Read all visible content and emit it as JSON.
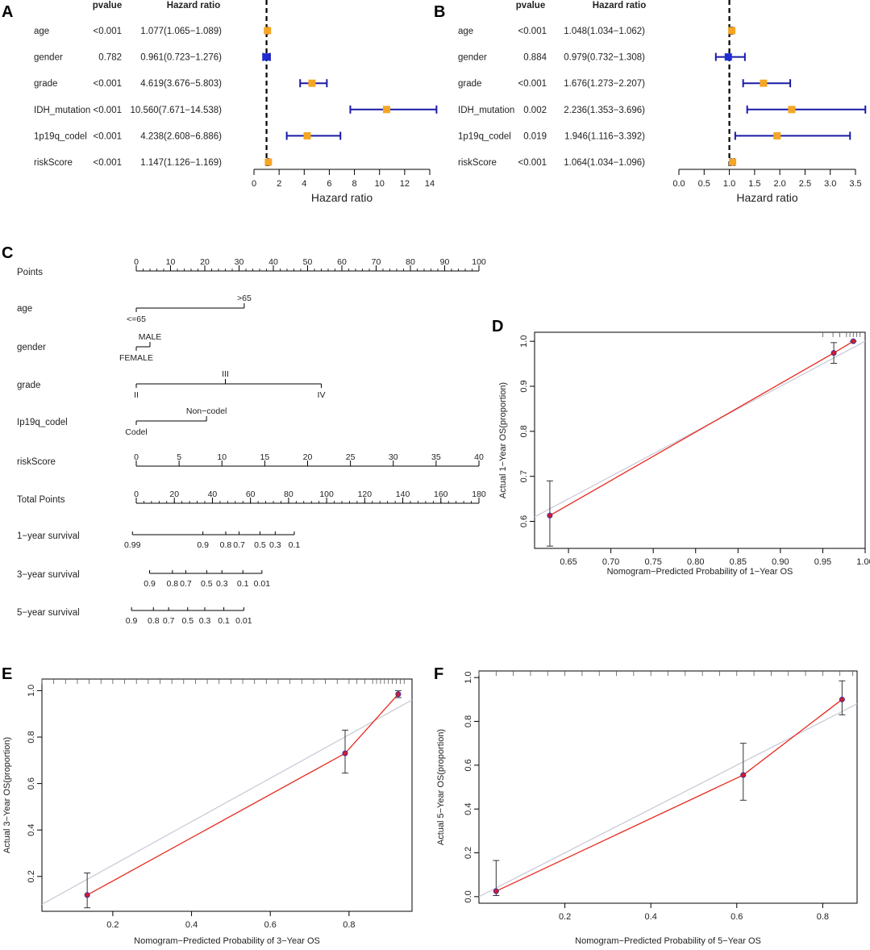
{
  "panels": {
    "A": "A",
    "B": "B",
    "C": "C",
    "D": "D",
    "E": "E",
    "F": "F"
  },
  "forest_headers": {
    "pvalue": "pvalue",
    "hr": "Hazard ratio"
  },
  "chart_data": [
    {
      "id": "A",
      "type": "forest",
      "title": "",
      "xlabel": "Hazard ratio",
      "xlim": [
        0,
        14
      ],
      "xticks": [
        0,
        2,
        4,
        6,
        8,
        10,
        12,
        14
      ],
      "xtick_labels": [
        "0",
        "2",
        "4",
        "6",
        "8",
        "10",
        "12",
        "14"
      ],
      "ref_line": 1,
      "rows": [
        {
          "name": "age",
          "pvalue": "<0.001",
          "hr_text": "1.077(1.065−1.089)",
          "hr": 1.077,
          "lo": 1.065,
          "hi": 1.089,
          "color": "#F5A623"
        },
        {
          "name": "gender",
          "pvalue": "0.782",
          "hr_text": "0.961(0.723−1.276)",
          "hr": 0.961,
          "lo": 0.723,
          "hi": 1.276,
          "color": "#1E2BD6"
        },
        {
          "name": "grade",
          "pvalue": "<0.001",
          "hr_text": "4.619(3.676−5.803)",
          "hr": 4.619,
          "lo": 3.676,
          "hi": 5.803,
          "color": "#F5A623"
        },
        {
          "name": "IDH_mutation",
          "pvalue": "<0.001",
          "hr_text": "10.560(7.671−14.538)",
          "hr": 10.56,
          "lo": 7.671,
          "hi": 14.538,
          "color": "#F5A623"
        },
        {
          "name": "1p19q_codel",
          "pvalue": "<0.001",
          "hr_text": "4.238(2.608−6.886)",
          "hr": 4.238,
          "lo": 2.608,
          "hi": 6.886,
          "color": "#F5A623"
        },
        {
          "name": "riskScore",
          "pvalue": "<0.001",
          "hr_text": "1.147(1.126−1.169)",
          "hr": 1.147,
          "lo": 1.126,
          "hi": 1.169,
          "color": "#F5A623"
        }
      ]
    },
    {
      "id": "B",
      "type": "forest",
      "title": "",
      "xlabel": "Hazard ratio",
      "xlim": [
        0,
        3.5
      ],
      "xticks": [
        0,
        0.5,
        1,
        1.5,
        2,
        2.5,
        3,
        3.5
      ],
      "xtick_labels": [
        "0.0",
        "0.5",
        "1.0",
        "1.5",
        "2.0",
        "2.5",
        "3.0",
        "3.5"
      ],
      "ref_line": 1,
      "rows": [
        {
          "name": "age",
          "pvalue": "<0.001",
          "hr_text": "1.048(1.034−1.062)",
          "hr": 1.048,
          "lo": 1.034,
          "hi": 1.062,
          "color": "#F5A623"
        },
        {
          "name": "gender",
          "pvalue": "0.884",
          "hr_text": "0.979(0.732−1.308)",
          "hr": 0.979,
          "lo": 0.732,
          "hi": 1.308,
          "color": "#1E2BD6"
        },
        {
          "name": "grade",
          "pvalue": "<0.001",
          "hr_text": "1.676(1.273−2.207)",
          "hr": 1.676,
          "lo": 1.273,
          "hi": 2.207,
          "color": "#F5A623"
        },
        {
          "name": "IDH_mutation",
          "pvalue": "0.002",
          "hr_text": "2.236(1.353−3.696)",
          "hr": 2.236,
          "lo": 1.353,
          "hi": 3.696,
          "color": "#F5A623"
        },
        {
          "name": "1p19q_codel",
          "pvalue": "0.019",
          "hr_text": "1.946(1.116−3.392)",
          "hr": 1.946,
          "lo": 1.116,
          "hi": 3.392,
          "color": "#F5A623"
        },
        {
          "name": "riskScore",
          "pvalue": "<0.001",
          "hr_text": "1.064(1.034−1.096)",
          "hr": 1.064,
          "lo": 1.034,
          "hi": 1.096,
          "color": "#F5A623"
        }
      ]
    },
    {
      "id": "C",
      "type": "nomogram",
      "title": "",
      "rows": [
        {
          "label": "Points",
          "kind": "axis",
          "range": [
            0,
            100
          ],
          "ticks": [
            0,
            10,
            20,
            30,
            40,
            50,
            60,
            70,
            80,
            90,
            100
          ],
          "tick_labels": [
            "0",
            "10",
            "20",
            "30",
            "40",
            "50",
            "60",
            "70",
            "80",
            "90",
            "100"
          ],
          "minor_step": 2
        },
        {
          "label": "age",
          "kind": "categorical",
          "points_range": [
            0,
            31.5
          ],
          "levels": [
            {
              "text": "<=65",
              "pts": 0,
              "side": "below"
            },
            {
              "text": ">65",
              "pts": 31.5,
              "side": "above"
            }
          ]
        },
        {
          "label": "gender",
          "kind": "categorical",
          "points_range": [
            0,
            4
          ],
          "levels": [
            {
              "text": "FEMALE",
              "pts": 0,
              "side": "below"
            },
            {
              "text": "MALE",
              "pts": 4,
              "side": "above"
            }
          ]
        },
        {
          "label": "grade",
          "kind": "categorical",
          "points_range": [
            0,
            54
          ],
          "levels": [
            {
              "text": "II",
              "pts": 0,
              "side": "below"
            },
            {
              "text": "III",
              "pts": 26,
              "side": "above"
            },
            {
              "text": "IV",
              "pts": 54,
              "side": "below"
            }
          ]
        },
        {
          "label": "Ip19q_codel",
          "kind": "categorical",
          "points_range": [
            0,
            20.5
          ],
          "levels": [
            {
              "text": "Codel",
              "pts": 0,
              "side": "below"
            },
            {
              "text": "Non−codel",
              "pts": 20.5,
              "side": "above"
            }
          ]
        },
        {
          "label": "riskScore",
          "kind": "axis",
          "range": [
            0,
            40
          ],
          "ticks": [
            0,
            5,
            10,
            15,
            20,
            25,
            30,
            35,
            40
          ],
          "tick_labels": [
            "0",
            "5",
            "10",
            "15",
            "20",
            "25",
            "30",
            "35",
            "40"
          ],
          "minor_step": 0
        },
        {
          "label": "Total Points",
          "kind": "axis",
          "range": [
            0,
            180
          ],
          "ticks": [
            0,
            20,
            40,
            60,
            80,
            100,
            120,
            140,
            160,
            180
          ],
          "tick_labels": [
            "0",
            "20",
            "40",
            "60",
            "80",
            "100",
            "120",
            "140",
            "160",
            "180"
          ],
          "minor_step": 4
        },
        {
          "label": "1−year survival",
          "kind": "survival",
          "total_points": [
            -2,
            83
          ],
          "ticks": [
            {
              "text": "0.99",
              "tp": -2
            },
            {
              "text": "0.9",
              "tp": 35
            },
            {
              "text": "0.8",
              "tp": 47
            },
            {
              "text": "0.7",
              "tp": 54
            },
            {
              "text": "0.5",
              "tp": 65
            },
            {
              "text": "0.3",
              "tp": 73
            },
            {
              "text": "0.1",
              "tp": 83
            }
          ]
        },
        {
          "label": "3−year survival",
          "kind": "survival",
          "total_points": [
            7,
            66
          ],
          "ticks": [
            {
              "text": "0.9",
              "tp": 7
            },
            {
              "text": "0.8",
              "tp": 19
            },
            {
              "text": "0.7",
              "tp": 26
            },
            {
              "text": "0.5",
              "tp": 37
            },
            {
              "text": "0.3",
              "tp": 45
            },
            {
              "text": "0.1",
              "tp": 56
            },
            {
              "text": "0.01",
              "tp": 66
            }
          ]
        },
        {
          "label": "5−year survival",
          "kind": "survival",
          "total_points": [
            -2.5,
            56.5
          ],
          "ticks": [
            {
              "text": "0.9",
              "tp": -2.5
            },
            {
              "text": "0.8",
              "tp": 9
            },
            {
              "text": "0.7",
              "tp": 17
            },
            {
              "text": "0.5",
              "tp": 27
            },
            {
              "text": "0.3",
              "tp": 36
            },
            {
              "text": "0.1",
              "tp": 46
            },
            {
              "text": "0.01",
              "tp": 56.5
            }
          ]
        }
      ]
    },
    {
      "id": "D",
      "type": "line",
      "title": "",
      "xlabel": "Nomogram−Predicted Probability of 1−Year OS",
      "ylabel": "Actual 1−Year OS(proportion)",
      "xlim": [
        0.61,
        1.0
      ],
      "ylim": [
        0.54,
        1.02
      ],
      "xticks": [
        0.65,
        0.7,
        0.75,
        0.8,
        0.85,
        0.9,
        0.95,
        1.0
      ],
      "xtick_labels": [
        "0.65",
        "0.70",
        "0.75",
        "0.80",
        "0.85",
        "0.90",
        "0.95",
        "1.00"
      ],
      "yticks": [
        0.6,
        0.7,
        0.8,
        0.9,
        1.0
      ],
      "ytick_labels": [
        "0.6",
        "0.7",
        "0.8",
        "0.9",
        "1.0"
      ],
      "rug": [
        0.95,
        0.962,
        0.97,
        0.978,
        0.982,
        0.986,
        0.99,
        0.994
      ],
      "series": [
        {
          "name": "ideal",
          "x": [
            0.61,
            1.0
          ],
          "y": [
            0.61,
            1.0
          ],
          "color": "#c8c8d8"
        },
        {
          "name": "observed",
          "x": [
            0.628,
            0.963,
            0.986
          ],
          "y": [
            0.613,
            0.974,
            1.0
          ],
          "lo": [
            0.545,
            0.951,
            1.0
          ],
          "hi": [
            0.69,
            0.997,
            1.0
          ],
          "color": "#e8281e"
        }
      ]
    },
    {
      "id": "E",
      "type": "line",
      "title": "",
      "xlabel": "Nomogram−Predicted Probability of 3−Year OS",
      "ylabel": "Actual 3−Year OS(proportion)",
      "xlim": [
        0.02,
        0.96
      ],
      "ylim": [
        0.05,
        1.05
      ],
      "xticks": [
        0.2,
        0.4,
        0.6,
        0.8
      ],
      "xtick_labels": [
        "0.2",
        "0.4",
        "0.6",
        "0.8"
      ],
      "yticks": [
        0.2,
        0.4,
        0.6,
        0.8,
        1.0
      ],
      "ytick_labels": [
        "0.2",
        "0.4",
        "0.6",
        "0.8",
        "1.0"
      ],
      "rug": [
        0.02,
        0.05,
        0.08,
        0.11,
        0.14,
        0.17,
        0.2,
        0.23,
        0.26,
        0.29,
        0.32,
        0.35,
        0.38,
        0.41,
        0.44,
        0.47,
        0.5,
        0.53,
        0.56,
        0.59,
        0.62,
        0.65,
        0.68,
        0.71,
        0.74,
        0.77,
        0.8,
        0.82,
        0.84,
        0.86,
        0.87,
        0.88,
        0.89,
        0.9,
        0.91,
        0.92,
        0.93,
        0.94
      ],
      "series": [
        {
          "name": "ideal",
          "x": [
            0.02,
            0.96
          ],
          "y": [
            0.08,
            0.96
          ],
          "color": "#c8c8d8"
        },
        {
          "name": "observed",
          "x": [
            0.135,
            0.79,
            0.925
          ],
          "y": [
            0.12,
            0.73,
            0.985
          ],
          "lo": [
            0.065,
            0.645,
            0.97
          ],
          "hi": [
            0.215,
            0.83,
            1.0
          ],
          "color": "#e8281e"
        }
      ]
    },
    {
      "id": "F",
      "type": "line",
      "title": "",
      "xlabel": "Nomogram−Predicted Probability of 5−Year OS",
      "ylabel": "Actual 5−Year OS(proportion)",
      "xlim": [
        0.0,
        0.88
      ],
      "ylim": [
        -0.03,
        1.03
      ],
      "xticks": [
        0.2,
        0.4,
        0.6,
        0.8
      ],
      "xtick_labels": [
        "0.2",
        "0.4",
        "0.6",
        "0.8"
      ],
      "yticks": [
        0.0,
        0.2,
        0.4,
        0.6,
        0.8,
        1.0
      ],
      "ytick_labels": [
        "0.0",
        "0.2",
        "0.4",
        "0.6",
        "0.8",
        "1.0"
      ],
      "rug": [
        0.0,
        0.04,
        0.08,
        0.12,
        0.16,
        0.2,
        0.24,
        0.28,
        0.32,
        0.36,
        0.4,
        0.44,
        0.48,
        0.52,
        0.56,
        0.6,
        0.64,
        0.68,
        0.72,
        0.76,
        0.8,
        0.84,
        0.87
      ],
      "series": [
        {
          "name": "ideal",
          "x": [
            0.0,
            0.88
          ],
          "y": [
            0.0,
            0.88
          ],
          "color": "#c8c8d8"
        },
        {
          "name": "observed",
          "x": [
            0.04,
            0.615,
            0.845
          ],
          "y": [
            0.025,
            0.555,
            0.9
          ],
          "lo": [
            0.005,
            0.44,
            0.83
          ],
          "hi": [
            0.165,
            0.7,
            0.985
          ],
          "color": "#e8281e"
        }
      ]
    }
  ]
}
